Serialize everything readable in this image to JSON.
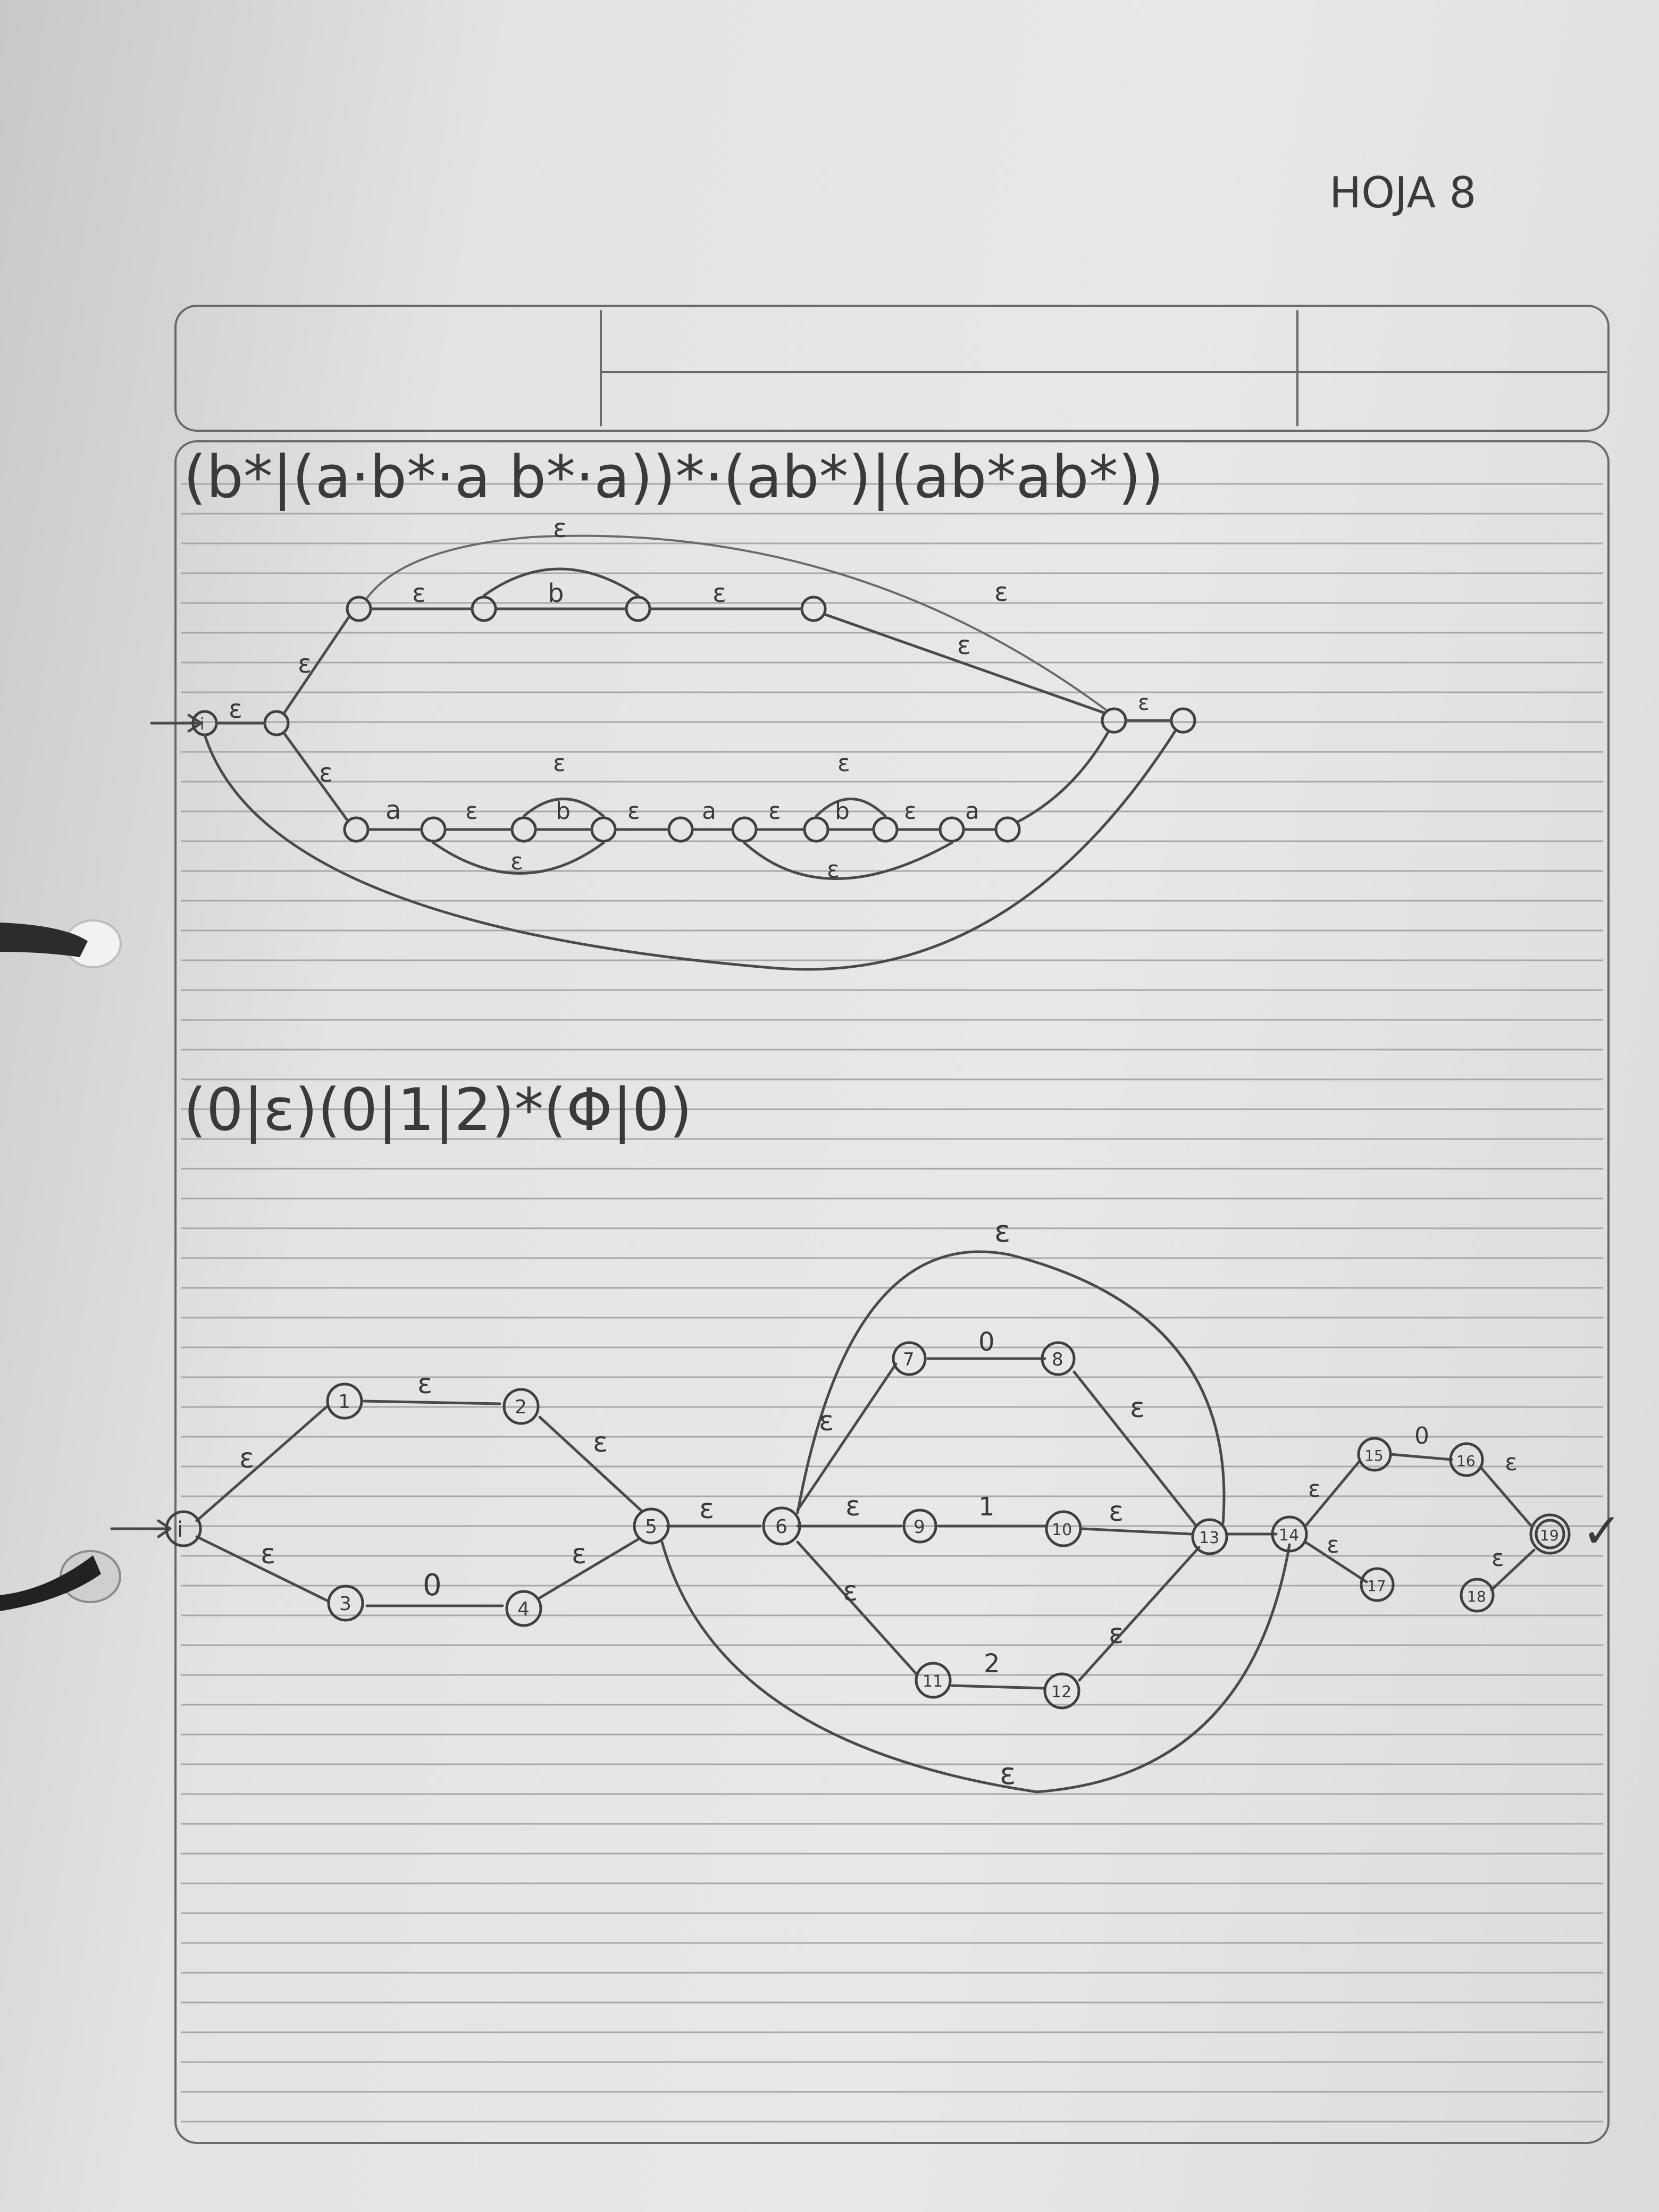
{
  "header": {
    "page_label": "HOJA 8"
  },
  "top_diagram": {
    "expression": "(b*|(a·b*·a b*·a))*·(ab*)|(ab*ab*))",
    "start_state": "i",
    "edge_labels": {
      "eps": "ε",
      "a": "a",
      "b": "b"
    }
  },
  "bottom_diagram": {
    "expression": "(0|ε)(0|1|2)*(Φ|0)",
    "states": [
      "i",
      "1",
      "2",
      "3",
      "4",
      "5",
      "6",
      "7",
      "8",
      "9",
      "10",
      "11",
      "12",
      "13",
      "14",
      "15",
      "16",
      "17",
      "18",
      "19"
    ],
    "edge_labels": {
      "eps": "ε",
      "zero": "0",
      "one": "1",
      "two": "2"
    },
    "check_mark": "✓"
  }
}
